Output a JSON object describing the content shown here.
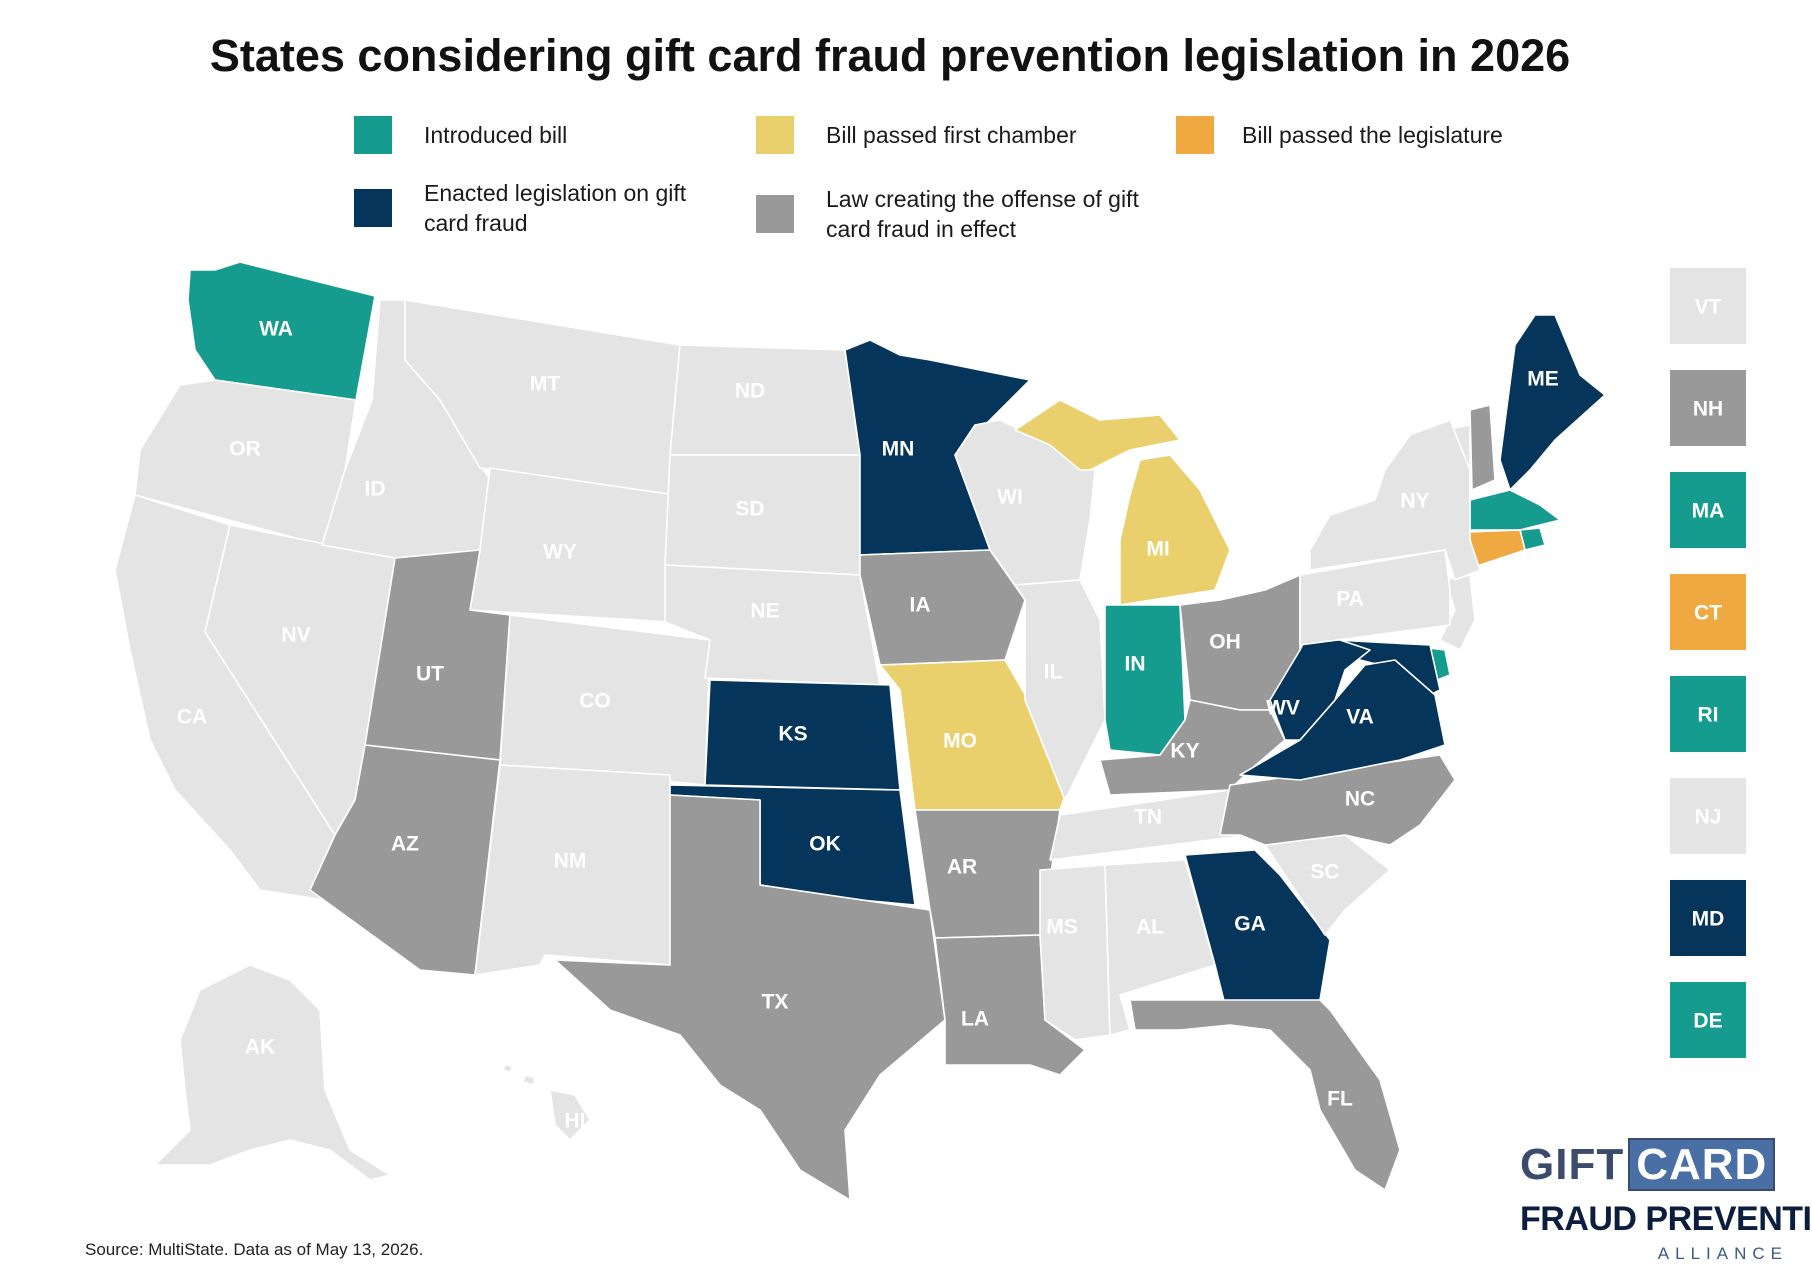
{
  "title": "States considering gift card fraud prevention legislation in 2026",
  "colors": {
    "introduced": "#169c8f",
    "first_chamber": "#ead06c",
    "passed_legislature": "#f0a941",
    "enacted": "#05355a",
    "law_in_effect": "#999999",
    "none": "#e4e4e4",
    "label_dark": "#ffffff",
    "label_light": "#ffffff"
  },
  "legend": [
    {
      "key": "introduced",
      "label": "Introduced bill"
    },
    {
      "key": "first_chamber",
      "label": "Bill passed first chamber"
    },
    {
      "key": "passed_legislature",
      "label": "Bill passed the legislature"
    },
    {
      "key": "enacted",
      "label": "Enacted legislation on gift card fraud"
    },
    {
      "key": "law_in_effect",
      "label": "Law creating the offense of gift card fraud in effect"
    }
  ],
  "states": {
    "WA": "introduced",
    "OR": "none",
    "CA": "none",
    "NV": "none",
    "ID": "none",
    "MT": "none",
    "WY": "none",
    "UT": "law_in_effect",
    "AZ": "law_in_effect",
    "CO": "none",
    "NM": "none",
    "ND": "none",
    "SD": "none",
    "NE": "none",
    "KS": "enacted",
    "OK": "enacted",
    "TX": "law_in_effect",
    "MN": "enacted",
    "IA": "law_in_effect",
    "MO": "first_chamber",
    "AR": "law_in_effect",
    "LA": "law_in_effect",
    "WI": "none",
    "IL": "none",
    "MI": "first_chamber",
    "IN": "introduced",
    "OH": "law_in_effect",
    "KY": "law_in_effect",
    "TN": "none",
    "MS": "none",
    "AL": "none",
    "GA": "enacted",
    "FL": "law_in_effect",
    "SC": "none",
    "NC": "law_in_effect",
    "VA": "enacted",
    "WV": "enacted",
    "PA": "none",
    "NY": "none",
    "ME": "enacted",
    "AK": "none",
    "HI": "none"
  },
  "northeast_boxes": [
    {
      "abbr": "VT",
      "status": "none"
    },
    {
      "abbr": "NH",
      "status": "law_in_effect"
    },
    {
      "abbr": "MA",
      "status": "introduced"
    },
    {
      "abbr": "CT",
      "status": "passed_legislature"
    },
    {
      "abbr": "RI",
      "status": "introduced"
    },
    {
      "abbr": "NJ",
      "status": "none"
    },
    {
      "abbr": "MD",
      "status": "enacted"
    },
    {
      "abbr": "DE",
      "status": "introduced"
    }
  ],
  "source": "Source: MultiState. Data as of May 13, 2026.",
  "logo": {
    "line1a": "GIFT",
    "line1b": "CARD",
    "line2": "FRAUD PREVENTION",
    "line3": "ALLIANCE"
  }
}
